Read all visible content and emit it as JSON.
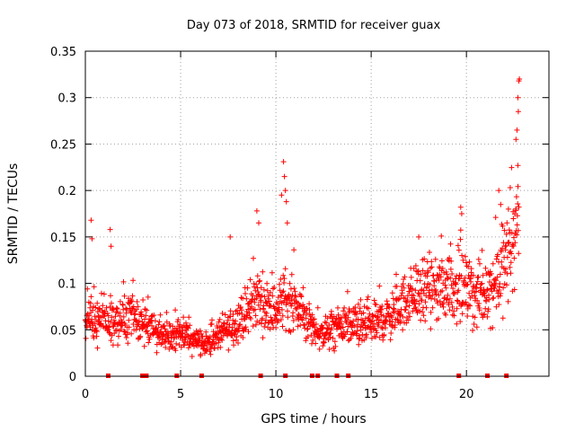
{
  "chart_data": {
    "type": "scatter",
    "title": "Day 073 of 2018, SRMTID for receiver guax",
    "xlabel": "GPS time / hours",
    "ylabel": "SRMTID / TECUs",
    "xlim": [
      0,
      24.33
    ],
    "ylim": [
      0,
      0.35
    ],
    "xticks": [
      0,
      5,
      10,
      15,
      20
    ],
    "xtick_labels": [
      "0",
      "5",
      "10",
      "15",
      "20"
    ],
    "yticks": [
      0,
      0.05,
      0.1,
      0.15,
      0.2,
      0.25,
      0.3,
      0.35
    ],
    "ytick_labels": [
      "0",
      "0.05",
      "0.1",
      "0.15",
      "0.2",
      "0.25",
      "0.3",
      "0.35"
    ],
    "grid": true,
    "marker": "plus",
    "series_color": "#ff0000",
    "baseline_markers_x": [
      1.2,
      3.0,
      3.2,
      4.8,
      6.1,
      9.2,
      10.5,
      11.9,
      12.2,
      13.2,
      13.8,
      19.6,
      21.1,
      22.1
    ],
    "envelope": {
      "x": [
        0,
        0.5,
        1,
        1.5,
        2,
        2.5,
        3,
        3.5,
        4,
        4.5,
        5,
        5.5,
        6,
        6.5,
        7,
        7.5,
        8,
        8.5,
        9,
        9.5,
        10,
        10.5,
        11,
        11.5,
        12,
        12.5,
        13,
        13.5,
        14,
        14.5,
        15,
        15.5,
        16,
        16.5,
        17,
        17.5,
        18,
        18.5,
        19,
        19.5,
        20,
        20.5,
        21,
        21.5,
        22,
        22.5,
        22.75
      ],
      "y": [
        0.062,
        0.058,
        0.06,
        0.057,
        0.06,
        0.063,
        0.058,
        0.05,
        0.045,
        0.042,
        0.045,
        0.043,
        0.038,
        0.036,
        0.045,
        0.05,
        0.06,
        0.068,
        0.085,
        0.075,
        0.07,
        0.085,
        0.075,
        0.065,
        0.05,
        0.045,
        0.05,
        0.055,
        0.055,
        0.052,
        0.055,
        0.06,
        0.065,
        0.075,
        0.085,
        0.09,
        0.09,
        0.092,
        0.1,
        0.095,
        0.09,
        0.085,
        0.09,
        0.1,
        0.12,
        0.15,
        0.18
      ]
    },
    "spikes": [
      {
        "x": 0.3,
        "y": 0.168
      },
      {
        "x": 0.35,
        "y": 0.148
      },
      {
        "x": 1.3,
        "y": 0.158
      },
      {
        "x": 1.35,
        "y": 0.14
      },
      {
        "x": 7.6,
        "y": 0.15
      },
      {
        "x": 9.0,
        "y": 0.178
      },
      {
        "x": 9.1,
        "y": 0.165
      },
      {
        "x": 10.3,
        "y": 0.195
      },
      {
        "x": 10.4,
        "y": 0.231
      },
      {
        "x": 10.45,
        "y": 0.215
      },
      {
        "x": 10.5,
        "y": 0.2
      },
      {
        "x": 10.55,
        "y": 0.188
      },
      {
        "x": 10.6,
        "y": 0.165
      },
      {
        "x": 17.5,
        "y": 0.15
      },
      {
        "x": 19.7,
        "y": 0.182
      },
      {
        "x": 19.75,
        "y": 0.175
      },
      {
        "x": 21.7,
        "y": 0.2
      },
      {
        "x": 21.8,
        "y": 0.185
      },
      {
        "x": 22.3,
        "y": 0.203
      },
      {
        "x": 22.6,
        "y": 0.255
      },
      {
        "x": 22.65,
        "y": 0.265
      },
      {
        "x": 22.7,
        "y": 0.3
      },
      {
        "x": 22.72,
        "y": 0.285
      },
      {
        "x": 22.75,
        "y": 0.318
      },
      {
        "x": 22.78,
        "y": 0.32
      },
      {
        "x": 22.7,
        "y": 0.227
      }
    ]
  }
}
